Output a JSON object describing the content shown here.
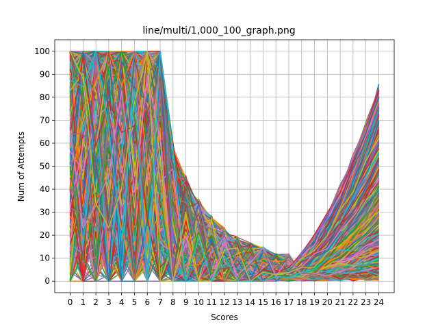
{
  "chart_data": {
    "type": "line",
    "title": "line/multi/1,000_100_graph.png",
    "xlabel": "Scores",
    "ylabel": "Num of Attempts",
    "x": [
      0,
      1,
      2,
      3,
      4,
      5,
      6,
      7,
      8,
      9,
      10,
      11,
      12,
      13,
      14,
      15,
      16,
      17,
      18,
      19,
      20,
      21,
      22,
      23,
      24
    ],
    "x_tick_labels": [
      "0",
      "1",
      "2",
      "3",
      "4",
      "5",
      "6",
      "7",
      "8",
      "9",
      "10",
      "11",
      "12",
      "13",
      "14",
      "15",
      "16",
      "17",
      "18",
      "19",
      "20",
      "21",
      "22",
      "23",
      "24"
    ],
    "y_tick_labels": [
      "0",
      "10",
      "20",
      "30",
      "40",
      "50",
      "60",
      "70",
      "80",
      "90",
      "100"
    ],
    "y_ticks": [
      0,
      10,
      20,
      30,
      40,
      50,
      60,
      70,
      80,
      90,
      100
    ],
    "xlim": [
      -1.2,
      25.2
    ],
    "ylim": [
      -5,
      105
    ],
    "grid": true,
    "series_count": 1000,
    "colors": [
      "#1f77b4",
      "#ff7f0e",
      "#2ca02c",
      "#d62728",
      "#9467bd",
      "#8c564b",
      "#e377c2",
      "#7f7f7f",
      "#bcbd22",
      "#17becf"
    ],
    "series_pattern": {
      "description_source": "pattern only",
      "early_high": [
        0,
        1,
        2,
        3,
        4,
        5,
        6,
        7
      ],
      "mid_decay_end": 15,
      "late_rise_start": 16,
      "end_max": 82
    }
  }
}
